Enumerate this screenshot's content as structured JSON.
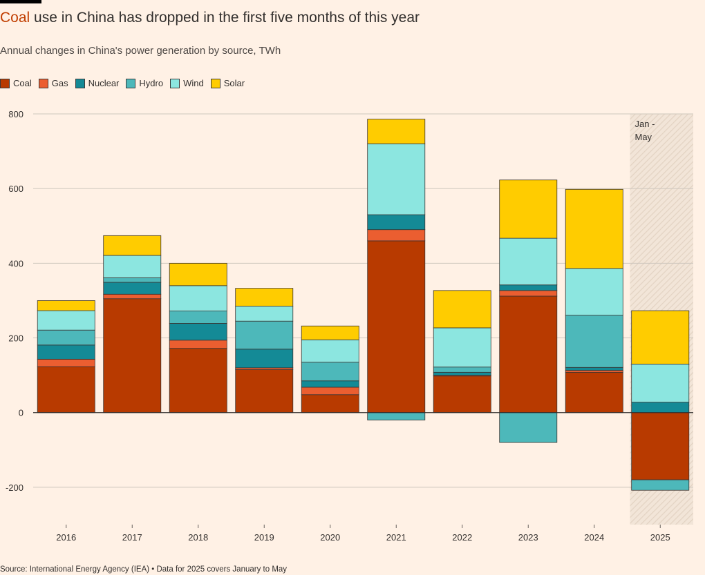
{
  "header": {
    "title_highlight": "Coal",
    "title_rest": " use in China has dropped in the first five months of this year",
    "subtitle": "Annual changes in China's power generation by source, TWh"
  },
  "colors": {
    "Coal": "#B83A00",
    "Gas": "#EB5E30",
    "Nuclear": "#148A96",
    "Hydro": "#4DB8BA",
    "Wind": "#8CE6E0",
    "Solar": "#FFCC00"
  },
  "chart_data": {
    "type": "bar",
    "stacked": true,
    "categories": [
      "2016",
      "2017",
      "2018",
      "2019",
      "2020",
      "2021",
      "2022",
      "2023",
      "2024",
      "2025"
    ],
    "series": [
      {
        "name": "Coal",
        "values": [
          123,
          305,
          172,
          115,
          48,
          460,
          98,
          312,
          108,
          -180
        ]
      },
      {
        "name": "Gas",
        "values": [
          20,
          12,
          22,
          5,
          20,
          30,
          2,
          15,
          5,
          0
        ]
      },
      {
        "name": "Nuclear",
        "values": [
          38,
          32,
          45,
          50,
          17,
          40,
          8,
          15,
          8,
          28
        ]
      },
      {
        "name": "Hydro",
        "values": [
          40,
          12,
          33,
          75,
          50,
          -20,
          14,
          -80,
          140,
          -28
        ]
      },
      {
        "name": "Wind",
        "values": [
          52,
          60,
          68,
          40,
          60,
          190,
          105,
          125,
          125,
          102
        ]
      },
      {
        "name": "Solar",
        "values": [
          27,
          53,
          60,
          48,
          37,
          66,
          100,
          156,
          212,
          143
        ]
      }
    ],
    "ylim": [
      -300,
      800
    ],
    "yticks": [
      -200,
      0,
      200,
      400,
      600,
      800
    ],
    "ytick_labels": [
      "-200",
      "0",
      "200",
      "400",
      "600",
      "800"
    ],
    "grid": true,
    "legend_position": "top-left",
    "annotation": {
      "category": "2025",
      "lines": [
        "Jan -",
        "May"
      ]
    }
  },
  "source": "Source: International Energy Agency (IEA) • Data for 2025 covers January to May"
}
